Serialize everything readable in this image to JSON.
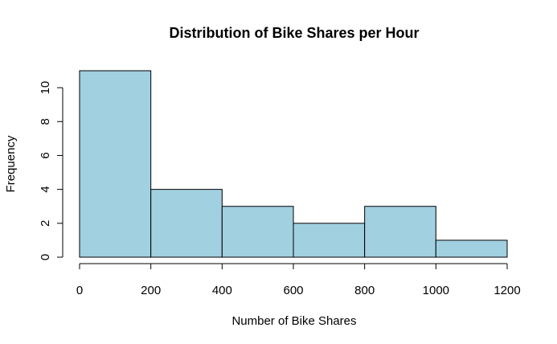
{
  "chart_data": {
    "type": "bar",
    "title": "Distribution of Bike Shares per Hour",
    "xlabel": "Number of Bike Shares",
    "ylabel": "Frequency",
    "bins": [
      {
        "start": 0,
        "end": 200,
        "count": 11
      },
      {
        "start": 200,
        "end": 400,
        "count": 4
      },
      {
        "start": 400,
        "end": 600,
        "count": 3
      },
      {
        "start": 600,
        "end": 800,
        "count": 2
      },
      {
        "start": 800,
        "end": 1000,
        "count": 3
      },
      {
        "start": 1000,
        "end": 1200,
        "count": 1
      }
    ],
    "xlim": [
      0,
      1200
    ],
    "ylim": [
      0,
      11
    ],
    "x_ticks": [
      "0",
      "200",
      "400",
      "600",
      "800",
      "1000",
      "1200"
    ],
    "y_ticks": [
      "0",
      "2",
      "4",
      "6",
      "8",
      "10"
    ],
    "bar_color": "#a1d0e0",
    "grid": false,
    "legend": "none"
  }
}
